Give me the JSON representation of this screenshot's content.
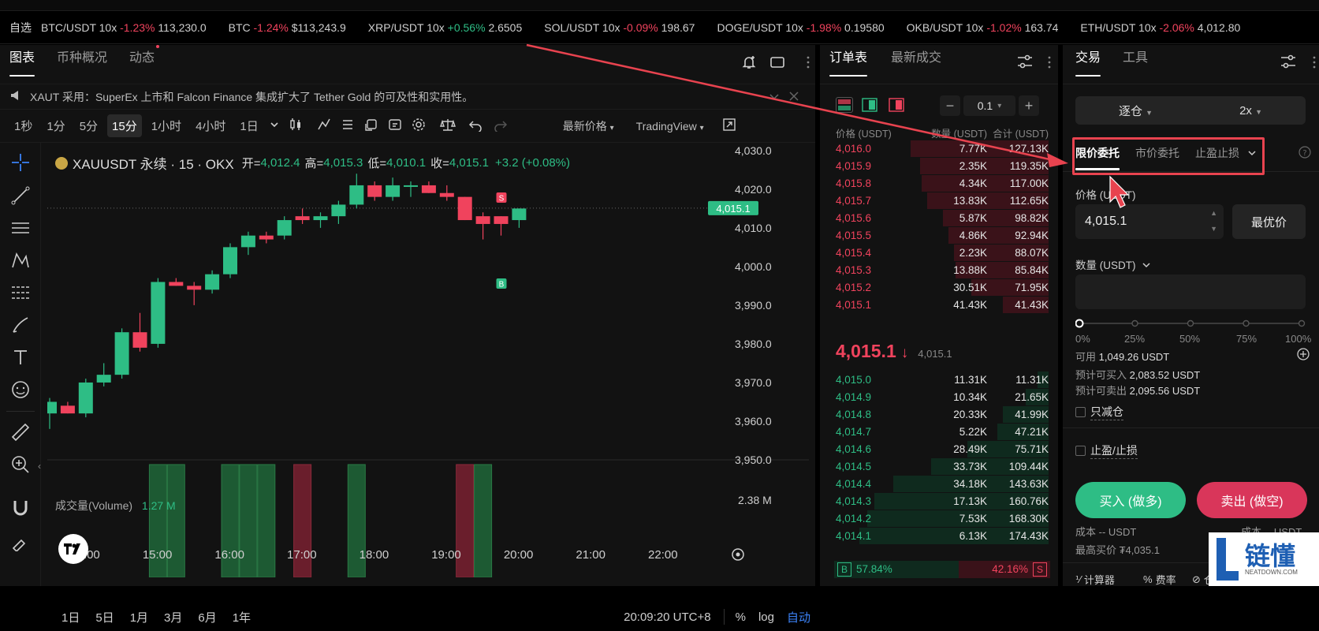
{
  "ticker": {
    "fav_label": "自选",
    "items": [
      {
        "name": "BTC/USDT 10x",
        "pct": "-1.23%",
        "dir": "neg",
        "price": "113,230.0"
      },
      {
        "name": "BTC",
        "pct": "-1.24%",
        "dir": "neg",
        "price": "$113,243.9"
      },
      {
        "name": "XRP/USDT 10x",
        "pct": "+0.56%",
        "dir": "pos",
        "price": "2.6505"
      },
      {
        "name": "SOL/USDT 10x",
        "pct": "-0.09%",
        "dir": "neg",
        "price": "198.67"
      },
      {
        "name": "DOGE/USDT 10x",
        "pct": "-1.98%",
        "dir": "neg",
        "price": "0.19580"
      },
      {
        "name": "OKB/USDT 10x",
        "pct": "-1.02%",
        "dir": "neg",
        "price": "163.74"
      },
      {
        "name": "ETH/USDT 10x",
        "pct": "-2.06%",
        "dir": "neg",
        "price": "4,012.80"
      }
    ]
  },
  "chart_panel": {
    "tabs": [
      "图表",
      "币种概况",
      "动态"
    ],
    "announcement": "XAUT 采用：SuperEx 上市和 Falcon Finance 集成扩大了 Tether Gold 的可及性和实用性。",
    "timeframes": [
      "1秒",
      "1分",
      "5分",
      "15分",
      "1小时",
      "4小时",
      "1日"
    ],
    "active_timeframe": "15分",
    "price_source": "最新价格",
    "chart_engine": "TradingView",
    "legend": {
      "symbol": "XAUUSDT 永续 · 15 · OKX",
      "open_label": "开=",
      "open": "4,012.4",
      "high_label": "高=",
      "high": "4,015.3",
      "low_label": "低=",
      "low": "4,010.1",
      "close_label": "收=",
      "close": "4,015.1",
      "change": "+3.2 (+0.08%)"
    },
    "volume_legend": {
      "label": "成交量(Volume)",
      "value": "1.27 M"
    },
    "volume_axis_label": "2.38 M",
    "current_price_tag": "4,015.1",
    "marker_sell": "S",
    "marker_buy": "B",
    "range_buttons": [
      "1日",
      "5日",
      "1月",
      "3月",
      "6月",
      "1年"
    ],
    "clock": "20:09:20 UTC+8",
    "pct_label": "%",
    "log_label": "log",
    "auto_label": "自动"
  },
  "chart_data": {
    "type": "candlestick",
    "title": "",
    "x": [
      "13:30",
      "13:45",
      "14:00",
      "14:15",
      "14:30",
      "14:45",
      "15:00",
      "15:15",
      "15:30",
      "15:45",
      "16:00",
      "16:15",
      "16:30",
      "16:45",
      "17:00",
      "17:15",
      "17:30",
      "17:45",
      "18:00",
      "18:15",
      "18:30",
      "18:45",
      "19:00",
      "19:15",
      "19:30",
      "19:45",
      "20:00"
    ],
    "candles": [
      {
        "o": 3962,
        "h": 3966,
        "l": 3958,
        "c": 3965
      },
      {
        "o": 3964,
        "h": 3965,
        "l": 3962,
        "c": 3962
      },
      {
        "o": 3962,
        "h": 3971,
        "l": 3961,
        "c": 3970
      },
      {
        "o": 3970,
        "h": 3975,
        "l": 3969,
        "c": 3972
      },
      {
        "o": 3972,
        "h": 3984,
        "l": 3971,
        "c": 3983
      },
      {
        "o": 3983,
        "h": 3988,
        "l": 3978,
        "c": 3979
      },
      {
        "o": 3980,
        "h": 3997,
        "l": 3979,
        "c": 3996
      },
      {
        "o": 3996,
        "h": 3997,
        "l": 3995,
        "c": 3995
      },
      {
        "o": 3995,
        "h": 3996,
        "l": 3990,
        "c": 3994
      },
      {
        "o": 3994,
        "h": 3999,
        "l": 3993,
        "c": 3998
      },
      {
        "o": 3998,
        "h": 4006,
        "l": 3997,
        "c": 4005
      },
      {
        "o": 4005,
        "h": 4009,
        "l": 4003,
        "c": 4008
      },
      {
        "o": 4008,
        "h": 4009,
        "l": 4006,
        "c": 4007
      },
      {
        "o": 4008,
        "h": 4013,
        "l": 4007,
        "c": 4012
      },
      {
        "o": 4013,
        "h": 4015,
        "l": 4011,
        "c": 4012
      },
      {
        "o": 4012,
        "h": 4014,
        "l": 4010,
        "c": 4013
      },
      {
        "o": 4013,
        "h": 4017,
        "l": 4011,
        "c": 4016
      },
      {
        "o": 4016,
        "h": 4024,
        "l": 4015,
        "c": 4021
      },
      {
        "o": 4021,
        "h": 4022,
        "l": 4017,
        "c": 4018
      },
      {
        "o": 4018,
        "h": 4023,
        "l": 4017,
        "c": 4021
      },
      {
        "o": 4021,
        "h": 4022,
        "l": 4018,
        "c": 4021
      },
      {
        "o": 4021,
        "h": 4022,
        "l": 4019,
        "c": 4019
      },
      {
        "o": 4019,
        "h": 4021,
        "l": 4017,
        "c": 4018
      },
      {
        "o": 4018,
        "h": 4018,
        "l": 4012,
        "c": 4012
      },
      {
        "o": 4013,
        "h": 4014,
        "l": 4007,
        "c": 4011
      },
      {
        "o": 4013,
        "h": 4013,
        "l": 4008,
        "c": 4011
      },
      {
        "o": 4012,
        "h": 4015,
        "l": 4010,
        "c": 4015
      }
    ],
    "volume": [
      0,
      0,
      0,
      0,
      0,
      0,
      2.3,
      2.3,
      0,
      0,
      2.3,
      2.3,
      2.3,
      0,
      2.3,
      0,
      0,
      2.3,
      0,
      0,
      0,
      0,
      0,
      2.3,
      2.3,
      0,
      0
    ],
    "volume_dir": [
      "",
      "",
      "",
      "",
      "",
      "",
      "up",
      "up",
      "",
      "",
      "up",
      "up",
      "up",
      "",
      "down",
      "",
      "",
      "up",
      "",
      "",
      "",
      "",
      "",
      "down",
      "up",
      "",
      ""
    ],
    "ylim": [
      3950,
      4032
    ],
    "y_ticks": [
      "4,030.0",
      "4,020.0",
      "4,010.0",
      "4,000.0",
      "3,990.0",
      "3,980.0",
      "3,970.0",
      "3,960.0",
      "3,950.0"
    ],
    "x_ticks": [
      "14:00",
      "15:00",
      "16:00",
      "17:00",
      "18:00",
      "19:00",
      "20:00",
      "21:00",
      "22:00"
    ],
    "grid": false
  },
  "orderbook": {
    "tabs": [
      "订单表",
      "最新成交"
    ],
    "step": "0.1",
    "headers": [
      "价格 (USDT)",
      "数量 (USDT)",
      "合计 (USDT)"
    ],
    "asks": [
      {
        "price": "4,016.0",
        "qty": "7.77K",
        "total": "127.13K",
        "depth": 0.73
      },
      {
        "price": "4,015.9",
        "qty": "2.35K",
        "total": "119.35K",
        "depth": 0.68
      },
      {
        "price": "4,015.8",
        "qty": "4.34K",
        "total": "117.00K",
        "depth": 0.67
      },
      {
        "price": "4,015.7",
        "qty": "13.83K",
        "total": "112.65K",
        "depth": 0.64
      },
      {
        "price": "4,015.6",
        "qty": "5.87K",
        "total": "98.82K",
        "depth": 0.56
      },
      {
        "price": "4,015.5",
        "qty": "4.86K",
        "total": "92.94K",
        "depth": 0.53
      },
      {
        "price": "4,015.4",
        "qty": "2.23K",
        "total": "88.07K",
        "depth": 0.5
      },
      {
        "price": "4,015.3",
        "qty": "13.88K",
        "total": "85.84K",
        "depth": 0.49
      },
      {
        "price": "4,015.2",
        "qty": "30.51K",
        "total": "71.95K",
        "depth": 0.41
      },
      {
        "price": "4,015.1",
        "qty": "41.43K",
        "total": "41.43K",
        "depth": 0.24
      }
    ],
    "last_price": "4,015.1",
    "last_arrow": "↓",
    "mark_price": "4,015.1",
    "bids": [
      {
        "price": "4,015.0",
        "qty": "11.31K",
        "total": "11.31K",
        "depth": 0.06
      },
      {
        "price": "4,014.9",
        "qty": "10.34K",
        "total": "21.65K",
        "depth": 0.12
      },
      {
        "price": "4,014.8",
        "qty": "20.33K",
        "total": "41.99K",
        "depth": 0.24
      },
      {
        "price": "4,014.7",
        "qty": "5.22K",
        "total": "47.21K",
        "depth": 0.27
      },
      {
        "price": "4,014.6",
        "qty": "28.49K",
        "total": "75.71K",
        "depth": 0.43
      },
      {
        "price": "4,014.5",
        "qty": "33.73K",
        "total": "109.44K",
        "depth": 0.62
      },
      {
        "price": "4,014.4",
        "qty": "34.18K",
        "total": "143.63K",
        "depth": 0.82
      },
      {
        "price": "4,014.3",
        "qty": "17.13K",
        "total": "160.76K",
        "depth": 0.92
      },
      {
        "price": "4,014.2",
        "qty": "7.53K",
        "total": "168.30K",
        "depth": 0.96
      },
      {
        "price": "4,014.1",
        "qty": "6.13K",
        "total": "174.43K",
        "depth": 1.0
      }
    ],
    "buy_ratio_label": "B",
    "buy_ratio": "57.84%",
    "sell_ratio": "42.16%",
    "sell_ratio_label": "S"
  },
  "trade": {
    "tabs": [
      "交易",
      "工具"
    ],
    "margin_mode": "逐仓",
    "leverage": "2x",
    "order_types": [
      "限价委托",
      "市价委托",
      "止盈止损"
    ],
    "price_label": "价格 (USDT)",
    "price_value": "4,015.1",
    "best_price_label": "最优价",
    "qty_label": "数量 (USDT)",
    "slider_marks": [
      "0%",
      "25%",
      "50%",
      "75%",
      "100%"
    ],
    "available_label": "可用",
    "available_value": "1,049.26 USDT",
    "est_buy_label": "预计可买入",
    "est_buy_value": "2,083.52 USDT",
    "est_sell_label": "预计可卖出",
    "est_sell_value": "2,095.56 USDT",
    "reduce_only": "只减仓",
    "tp_sl": "止盈/止损",
    "buy_button": "买入 (做多)",
    "sell_button": "卖出 (做空)",
    "cost_label": "成本 -- USDT",
    "cost_label_right": "成本 -- USDT",
    "max_buy": "最高买价 ₮4,035.1",
    "max_sell_partial": "最",
    "calculator": "计算器",
    "fees": "费率",
    "position": "仓"
  },
  "watermark": {
    "brand": "链懂",
    "url": "NEATDOWN.COM"
  },
  "colors": {
    "up": "#2ebd85",
    "down": "#f0435d",
    "annotation": "#e8434f"
  }
}
